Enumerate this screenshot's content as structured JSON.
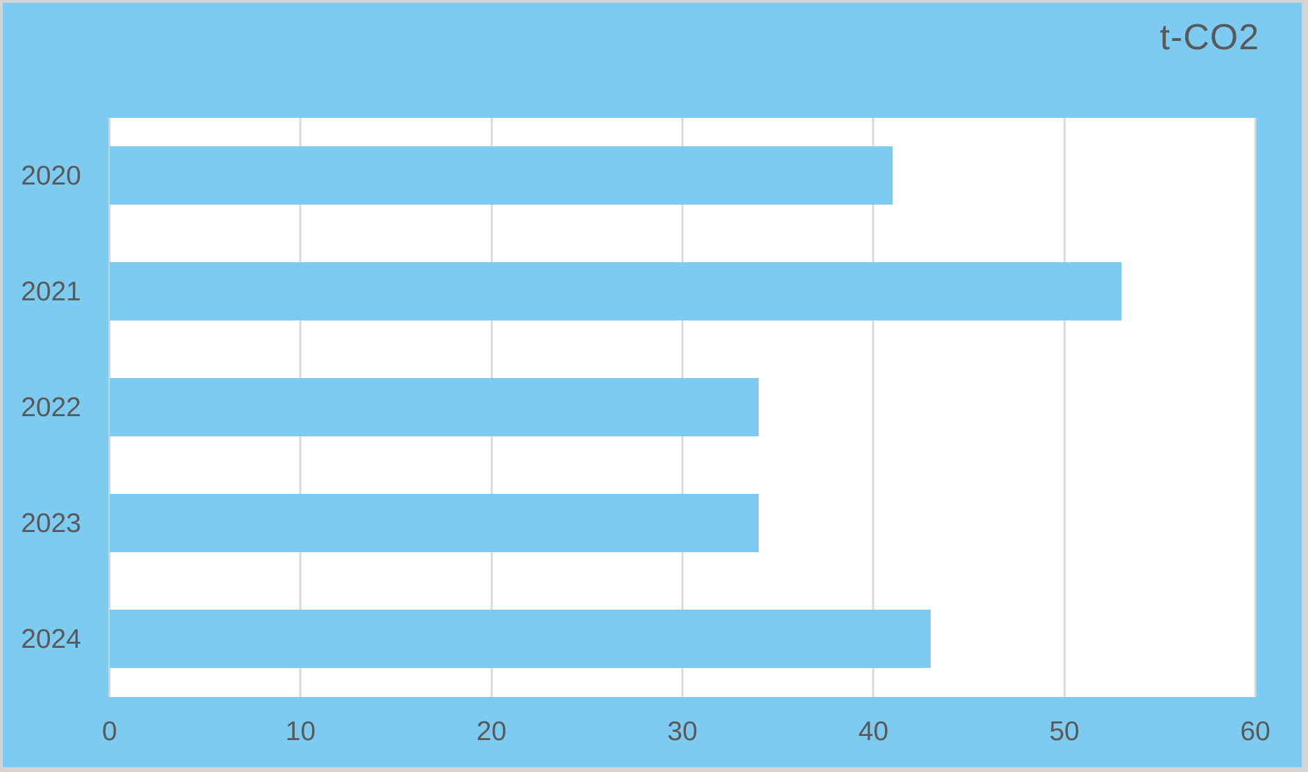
{
  "title": "t-CO2",
  "colors": {
    "background": "#7DCBF0",
    "plot_background": "#FFFFFF",
    "bar": "#7DCBF0",
    "gridline": "#D9D9D9",
    "text": "#595959",
    "outer_border": "#D5D3D3"
  },
  "chart_data": {
    "type": "bar",
    "orientation": "horizontal",
    "title": "t-CO2",
    "categories": [
      "2020",
      "2021",
      "2022",
      "2023",
      "2024"
    ],
    "values": [
      41,
      53,
      34,
      34,
      43
    ],
    "xlabel": "",
    "ylabel": "",
    "xlim": [
      0,
      60
    ],
    "xticks": [
      0,
      10,
      20,
      30,
      40,
      50,
      60
    ],
    "grid": true,
    "legend": false
  }
}
